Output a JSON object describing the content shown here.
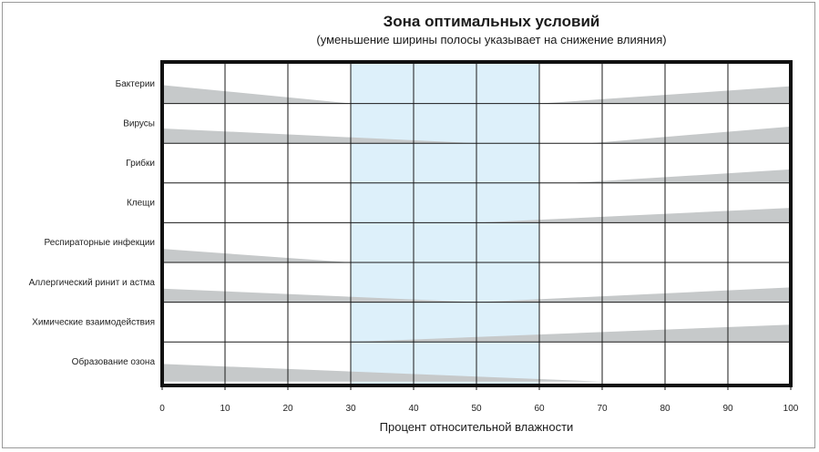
{
  "chart_data": {
    "type": "area",
    "title": "Зона оптимальных условий",
    "subtitle": "(уменьшение ширины полосы указывает на снижение влияния)",
    "xlabel": "Процент относительной влажности",
    "xlim": [
      0,
      100
    ],
    "xticks": [
      "0",
      "10",
      "20",
      "30",
      "40",
      "50",
      "60",
      "70",
      "80",
      "90",
      "100"
    ],
    "optimal_zone": [
      30,
      60
    ],
    "colors": {
      "band": "#c6c9ca",
      "zone": "#ddf0fa",
      "grid": "#1a1a1a"
    },
    "rows": [
      {
        "label": "Бактерии",
        "left": {
          "x": [
            0,
            30
          ],
          "width": [
            0.75,
            0
          ]
        },
        "right": {
          "x": [
            60,
            100
          ],
          "width": [
            0,
            0.7
          ]
        }
      },
      {
        "label": "Вирусы",
        "left": {
          "x": [
            0,
            50
          ],
          "width": [
            0.6,
            0
          ]
        },
        "right": {
          "x": [
            68,
            100
          ],
          "width": [
            0,
            0.68
          ]
        }
      },
      {
        "label": "Грибки",
        "left": null,
        "right": {
          "x": [
            65,
            100
          ],
          "width": [
            0,
            0.55
          ]
        }
      },
      {
        "label": "Клещи",
        "left": null,
        "right": {
          "x": [
            50,
            100
          ],
          "width": [
            0,
            0.6
          ]
        }
      },
      {
        "label": "Респираторные инфекции",
        "left": {
          "x": [
            0,
            30
          ],
          "width": [
            0.55,
            0
          ]
        },
        "right": null
      },
      {
        "label": "Аллергический ринит и астма",
        "left": {
          "x": [
            0,
            50
          ],
          "width": [
            0.55,
            0
          ]
        },
        "right": {
          "x": [
            50,
            100
          ],
          "width": [
            0,
            0.6
          ]
        }
      },
      {
        "label": "Химические взаимодействия",
        "left": null,
        "right": {
          "x": [
            30,
            100
          ],
          "width": [
            0,
            0.7
          ]
        }
      },
      {
        "label": "Образование озона",
        "left": {
          "x": [
            0,
            70
          ],
          "width": [
            0.72,
            0
          ]
        },
        "right": null
      }
    ]
  }
}
